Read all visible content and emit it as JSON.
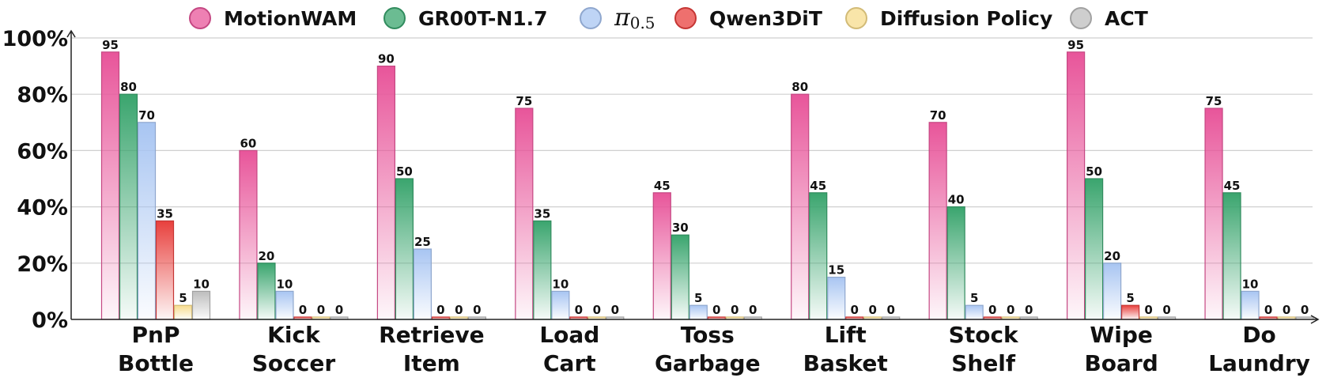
{
  "chart_data": {
    "type": "bar",
    "categories": [
      [
        "PnP",
        "Bottle"
      ],
      [
        "Kick",
        "Soccer"
      ],
      [
        "Retrieve",
        "Item"
      ],
      [
        "Load",
        "Cart"
      ],
      [
        "Toss",
        "Garbage"
      ],
      [
        "Lift",
        "Basket"
      ],
      [
        "Stock",
        "Shelf"
      ],
      [
        "Wipe",
        "Board"
      ],
      [
        "Do",
        "Laundry"
      ]
    ],
    "series": [
      {
        "name": "MotionWAM",
        "color": "#e8559a",
        "values": [
          95,
          60,
          90,
          75,
          45,
          80,
          70,
          95,
          75
        ]
      },
      {
        "name": "GR00T-N1.7",
        "color": "#3aa56e",
        "values": [
          80,
          20,
          50,
          35,
          30,
          45,
          40,
          50,
          45
        ]
      },
      {
        "name": "π0.5",
        "color": "#a8c5f2",
        "values": [
          70,
          10,
          25,
          10,
          5,
          15,
          5,
          20,
          10
        ]
      },
      {
        "name": "Qwen3DiT",
        "color": "#e8403d",
        "values": [
          35,
          0,
          0,
          0,
          0,
          0,
          0,
          5,
          0
        ]
      },
      {
        "name": "Diffusion Policy",
        "color": "#f7dc8c",
        "values": [
          5,
          0,
          0,
          0,
          0,
          0,
          0,
          0,
          0
        ]
      },
      {
        "name": "ACT",
        "color": "#bdbdbd",
        "values": [
          10,
          0,
          0,
          0,
          0,
          0,
          0,
          0,
          0
        ]
      }
    ],
    "yticks": [
      "0%",
      "20%",
      "40%",
      "60%",
      "80%",
      "100%"
    ],
    "ylim": [
      0,
      100
    ],
    "grid": true,
    "legend": "top"
  }
}
